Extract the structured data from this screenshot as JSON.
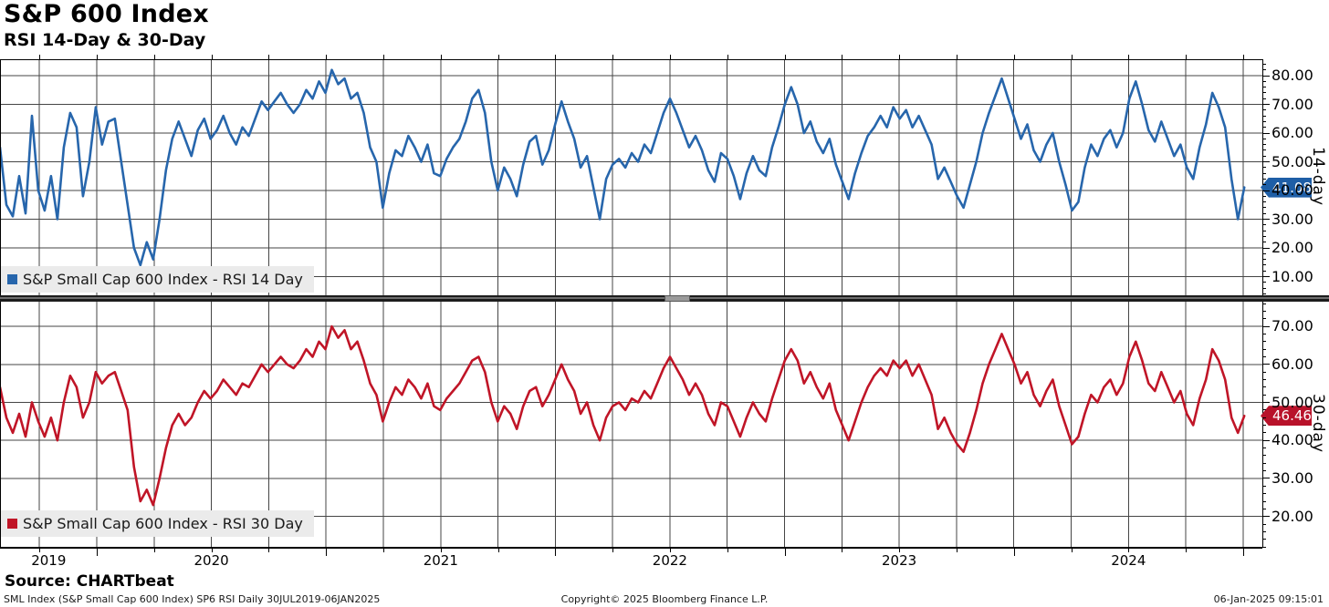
{
  "header": {
    "title": "S&P 600 Index",
    "subtitle": "RSI 14-Day & 30-Day"
  },
  "chart_data": [
    {
      "type": "line",
      "panel": "top",
      "name": "S&P Small Cap 600 Index - RSI 14 Day",
      "axis_label": "14-day",
      "color": "#2766ac",
      "tag_color": "#1e5ea6",
      "last_value": 41.08,
      "last_label": "41.08",
      "ylim": [
        3.5,
        85.7
      ],
      "yticks": [
        10,
        20,
        30,
        40,
        50,
        60,
        70,
        80
      ],
      "t_start": 2019.578,
      "t_end": 2025.005,
      "values": [
        55,
        35,
        31,
        45,
        32,
        66,
        40,
        33,
        45,
        30,
        55,
        67,
        62,
        38,
        50,
        69,
        56,
        64,
        65,
        50,
        35,
        20,
        14,
        22,
        16,
        30,
        47,
        58,
        64,
        58,
        52,
        61,
        65,
        58,
        61,
        66,
        60,
        56,
        62,
        59,
        65,
        71,
        68,
        71,
        74,
        70,
        67,
        70,
        75,
        72,
        78,
        74,
        82,
        77,
        79,
        72,
        74,
        67,
        55,
        50,
        34,
        46,
        54,
        52,
        59,
        55,
        50,
        56,
        46,
        45,
        51,
        55,
        58,
        64,
        72,
        75,
        67,
        50,
        40,
        48,
        44,
        38,
        49,
        57,
        59,
        49,
        54,
        63,
        71,
        64,
        58,
        48,
        52,
        41,
        30,
        44,
        49,
        51,
        48,
        53,
        50,
        56,
        53,
        60,
        67,
        72,
        67,
        61,
        55,
        59,
        54,
        47,
        43,
        53,
        51,
        45,
        37,
        46,
        52,
        47,
        45,
        55,
        62,
        70,
        76,
        70,
        60,
        64,
        57,
        53,
        58,
        49,
        43,
        37,
        46,
        53,
        59,
        62,
        66,
        62,
        69,
        65,
        68,
        62,
        66,
        61,
        56,
        44,
        48,
        43,
        38,
        34,
        42,
        50,
        60,
        67,
        73,
        79,
        72,
        65,
        58,
        63,
        54,
        50,
        56,
        60,
        50,
        42,
        33,
        36,
        48,
        56,
        52,
        58,
        61,
        55,
        60,
        72,
        78,
        70,
        61,
        57,
        64,
        58,
        52,
        56,
        48,
        44,
        55,
        63,
        74,
        69,
        62,
        44,
        30,
        41.08
      ]
    },
    {
      "type": "line",
      "panel": "bottom",
      "name": "S&P Small Cap 600 Index - RSI 30 Day",
      "axis_label": "30-day",
      "color": "#c01527",
      "tag_color": "#b8122a",
      "last_value": 46.46,
      "last_label": "46.46",
      "ylim": [
        12,
        76.5
      ],
      "yticks": [
        20,
        30,
        40,
        50,
        60,
        70
      ],
      "t_start": 2019.578,
      "t_end": 2025.005,
      "values": [
        54,
        46,
        42,
        47,
        41,
        50,
        45,
        41,
        46,
        40,
        50,
        57,
        54,
        46,
        50,
        58,
        55,
        57,
        58,
        53,
        48,
        33,
        24,
        27,
        23,
        30,
        38,
        44,
        47,
        44,
        46,
        50,
        53,
        51,
        53,
        56,
        54,
        52,
        55,
        54,
        57,
        60,
        58,
        60,
        62,
        60,
        59,
        61,
        64,
        62,
        66,
        64,
        70,
        67,
        69,
        64,
        66,
        61,
        55,
        52,
        45,
        50,
        54,
        52,
        56,
        54,
        51,
        55,
        49,
        48,
        51,
        53,
        55,
        58,
        61,
        62,
        58,
        50,
        45,
        49,
        47,
        43,
        49,
        53,
        54,
        49,
        52,
        56,
        60,
        56,
        53,
        47,
        50,
        44,
        40,
        46,
        49,
        50,
        48,
        51,
        50,
        53,
        51,
        55,
        59,
        62,
        59,
        56,
        52,
        55,
        52,
        47,
        44,
        50,
        49,
        45,
        41,
        46,
        50,
        47,
        45,
        51,
        56,
        61,
        64,
        61,
        55,
        58,
        54,
        51,
        55,
        48,
        44,
        40,
        45,
        50,
        54,
        57,
        59,
        57,
        61,
        59,
        61,
        57,
        60,
        56,
        52,
        43,
        46,
        42,
        39,
        37,
        42,
        48,
        55,
        60,
        64,
        68,
        64,
        60,
        55,
        58,
        52,
        49,
        53,
        56,
        49,
        44,
        39,
        41,
        47,
        52,
        50,
        54,
        56,
        52,
        55,
        62,
        66,
        61,
        55,
        53,
        58,
        54,
        50,
        53,
        47,
        44,
        51,
        56,
        64,
        61,
        56,
        46,
        42,
        46.46
      ]
    }
  ],
  "x_axis": {
    "xlim": [
      2019.578,
      2025.084
    ],
    "grid_step_years": 0.25,
    "year_tick_years": [
      2020,
      2021,
      2022,
      2023,
      2024,
      2025
    ],
    "year_labels": [
      {
        "label": "2019",
        "t": 2019.79
      },
      {
        "label": "2020",
        "t": 2020.5
      },
      {
        "label": "2021",
        "t": 2021.5
      },
      {
        "label": "2022",
        "t": 2022.5
      },
      {
        "label": "2023",
        "t": 2023.5
      },
      {
        "label": "2024",
        "t": 2024.5
      }
    ]
  },
  "footer": {
    "source": "Source: CHARTbeat",
    "meta_left": "SML Index (S&P Small Cap 600 Index) SP6 RSI  Daily 30JUL2019-06JAN2025",
    "meta_center": "Copyright© 2025 Bloomberg Finance L.P.",
    "meta_right": "06-Jan-2025 09:15:01"
  },
  "colors": {
    "grid": "#454545",
    "legend_bg": "#ebebeb"
  }
}
